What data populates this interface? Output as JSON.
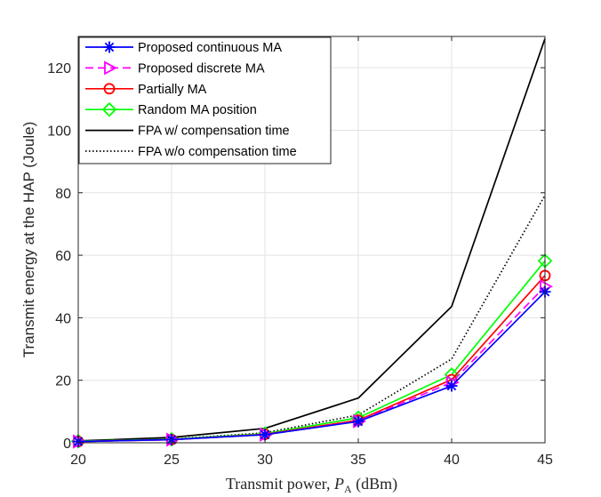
{
  "chart_data": {
    "type": "line",
    "title": "",
    "xlabel_prefix": "Transmit power, ",
    "xlabel_var": "P",
    "xlabel_sub": "A",
    "xlabel_suffix": " (dBm)",
    "ylabel": "Transmit energy at the HAP (Joule)",
    "x": [
      20,
      25,
      30,
      35,
      40,
      45
    ],
    "xlim": [
      20,
      45
    ],
    "ylim": [
      0,
      130
    ],
    "xticks": [
      20,
      25,
      30,
      35,
      40,
      45
    ],
    "yticks": [
      0,
      20,
      40,
      60,
      80,
      100,
      120
    ],
    "grid": true,
    "legend_position": "top-left",
    "series": [
      {
        "name": "Proposed continuous MA",
        "values": [
          0.4,
          1.0,
          2.6,
          6.8,
          18.2,
          48.3
        ],
        "color": "#0000ff",
        "dash": "solid",
        "marker": "star"
      },
      {
        "name": "Proposed discrete MA",
        "values": [
          0.4,
          1.0,
          2.6,
          6.9,
          19.3,
          50.0
        ],
        "color": "#ff00ff",
        "dash": "dashed",
        "marker": "triangle-right"
      },
      {
        "name": "Partially MA",
        "values": [
          0.4,
          1.0,
          2.7,
          7.2,
          20.2,
          53.5
        ],
        "color": "#ff0000",
        "dash": "solid",
        "marker": "circle"
      },
      {
        "name": "Random MA position",
        "values": [
          0.5,
          1.1,
          2.9,
          8.0,
          21.8,
          58.2
        ],
        "color": "#00ff00",
        "dash": "solid",
        "marker": "diamond"
      },
      {
        "name": "FPA w/ compensation time",
        "values": [
          0.6,
          1.7,
          4.6,
          14.3,
          43.6,
          129.3
        ],
        "color": "#000000",
        "dash": "solid",
        "marker": "none"
      },
      {
        "name": "FPA w/o compensation time",
        "values": [
          0.5,
          1.2,
          3.2,
          8.9,
          26.8,
          79.2
        ],
        "color": "#000000",
        "dash": "dotted",
        "marker": "none"
      }
    ]
  }
}
